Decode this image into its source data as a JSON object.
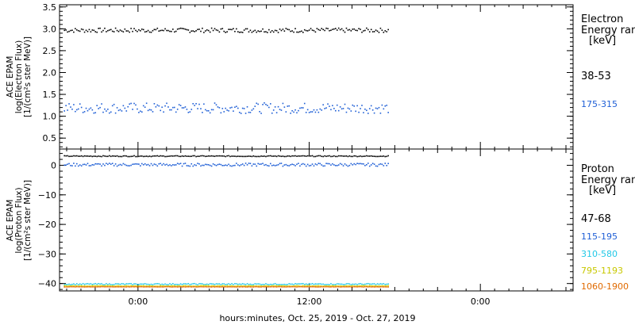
{
  "chart_data": [
    {
      "type": "scatter",
      "panel": "electron",
      "ylabel_lines": [
        "ACE EPAM",
        "log(Electron Flux)",
        "[1/(cm²s ster MeV)]"
      ],
      "ylim": [
        0.25,
        3.55
      ],
      "yticks": [
        0.5,
        1.0,
        1.5,
        2.0,
        2.5,
        3.0,
        3.5
      ],
      "ytick_labels": [
        "0.5",
        "1.0",
        "1.5",
        "2.0",
        "2.5",
        "3.0",
        "3.5"
      ],
      "legend_title_lines": [
        "Electron",
        "Energy ran",
        "[keV]"
      ],
      "series": [
        {
          "name": "38-53",
          "color": "#000000",
          "level": 2.98,
          "spread": 0.05
        },
        {
          "name": "175-315",
          "color": "#1f5fd6",
          "level": 1.2,
          "spread": 0.12
        }
      ]
    },
    {
      "type": "scatter",
      "panel": "proton",
      "ylabel_lines": [
        "ACE EPAM",
        "log(Proton Flux)",
        "[1/(cm²s ster MeV)]"
      ],
      "ylim": [
        -42.5,
        5.5
      ],
      "yticks": [
        0,
        -10,
        -20,
        -30,
        -40
      ],
      "ytick_labels": [
        "0",
        "−10",
        "−20",
        "−30",
        "−40"
      ],
      "legend_title_lines": [
        "Proton",
        "Energy ran",
        "[keV]"
      ],
      "series": [
        {
          "name": "47-68",
          "color": "#000000",
          "level": 3.3,
          "spread": 0.15
        },
        {
          "name": "115-195",
          "color": "#1f5fd6",
          "level": 0.4,
          "spread": 0.5
        },
        {
          "name": "310-580",
          "color": "#22c8e6",
          "level": -40.0,
          "spread": 0.2
        },
        {
          "name": "795-1193",
          "color": "#d8d800",
          "level": -40.6,
          "spread": 0.1
        },
        {
          "name": "1060-1900",
          "color": "#e06a00",
          "level": -40.9,
          "spread": 0.05
        }
      ]
    }
  ],
  "x_axis": {
    "xlabel": "hours:minutes, Oct. 25, 2019 - Oct. 27, 2019",
    "tick_labels": [
      "0:00",
      "12:00",
      "0:00"
    ],
    "xlim_hours": [
      -5.5,
      30.5
    ],
    "major_ticks_hours": [
      0,
      12,
      24
    ],
    "data_end_hours": 17.5
  }
}
